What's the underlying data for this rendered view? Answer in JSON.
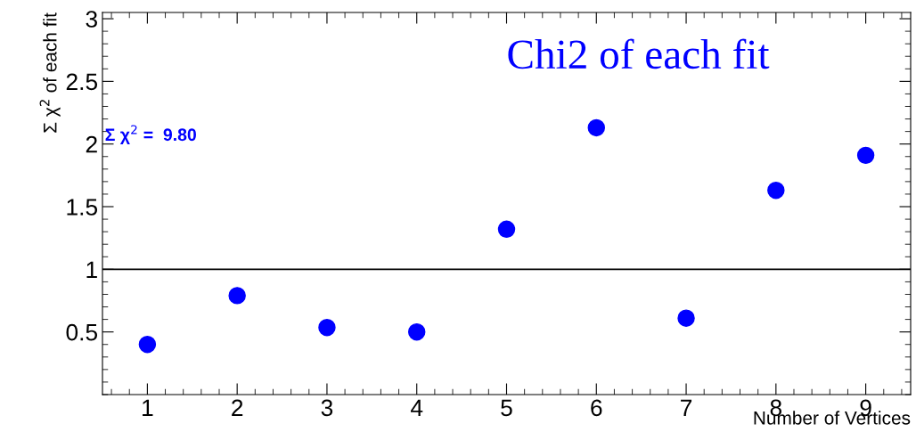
{
  "chart_data": {
    "type": "scatter",
    "title": "Chi2 of each fit",
    "xlabel": "Number of Vertices",
    "ylabel": "Σ χ$^{2}$ of each fit",
    "x": [
      1,
      2,
      3,
      4,
      5,
      6,
      7,
      8,
      9
    ],
    "series": [
      {
        "color": "#0000ff",
        "values": [
          0.4,
          0.79,
          0.535,
          0.5,
          1.32,
          2.13,
          0.61,
          1.63,
          1.91
        ]
      }
    ],
    "xlim": [
      0.5,
      9.5
    ],
    "xticks": [
      1,
      2,
      3,
      4,
      5,
      6,
      7,
      8,
      9
    ],
    "ylim": [
      0,
      3.05
    ],
    "yticks": [
      0.5,
      1,
      1.5,
      2,
      2.5,
      3
    ],
    "ref_lines": [
      {
        "axis": "y",
        "value": 1,
        "color": "#000000"
      }
    ],
    "annotations": [
      "Σ χ$^{2}$ =  9.80"
    ],
    "marker": "circle",
    "grid": false,
    "legend": false
  }
}
